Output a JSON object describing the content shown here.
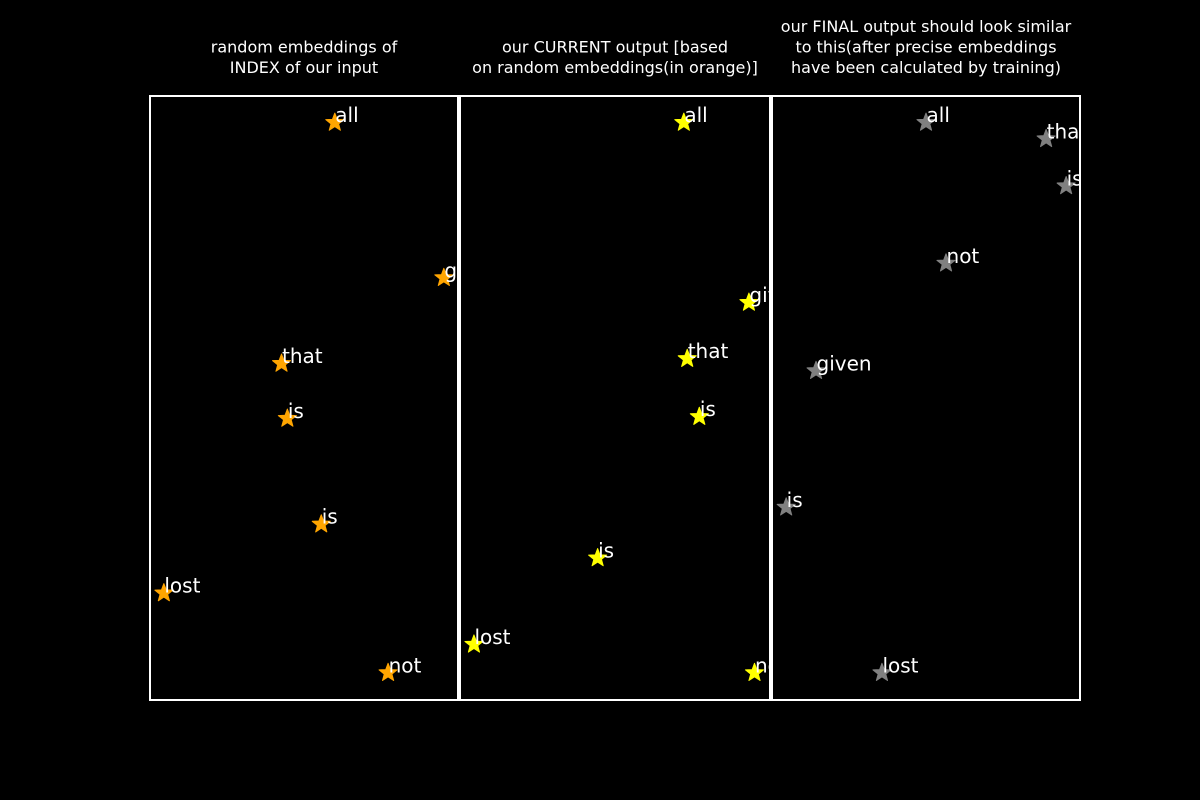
{
  "chart_data": [
    {
      "type": "scatter",
      "title_lines": [
        "random embeddings of",
        "INDEX of our input"
      ],
      "marker": "star",
      "marker_color": "#ffa500",
      "xlim": [
        0,
        1
      ],
      "ylim": [
        0,
        1
      ],
      "grid": false,
      "points": [
        {
          "label": "all",
          "x": 0.6,
          "y": 0.956
        },
        {
          "label": "gi",
          "x": 0.954,
          "y": 0.699
        },
        {
          "label": "that",
          "x": 0.427,
          "y": 0.557
        },
        {
          "label": "is",
          "x": 0.446,
          "y": 0.466
        },
        {
          "label": "is",
          "x": 0.556,
          "y": 0.291
        },
        {
          "label": "lost",
          "x": 0.045,
          "y": 0.177
        },
        {
          "label": "not",
          "x": 0.773,
          "y": 0.045
        }
      ]
    },
    {
      "type": "scatter",
      "title_lines": [
        "our CURRENT output [based",
        "on random embeddings(in orange)]"
      ],
      "marker": "star",
      "marker_color": "#ffff00",
      "xlim": [
        0,
        1
      ],
      "ylim": [
        0,
        1
      ],
      "grid": false,
      "points": [
        {
          "label": "all",
          "x": 0.722,
          "y": 0.956
        },
        {
          "label": "given",
          "x": 0.932,
          "y": 0.658
        },
        {
          "label": "that",
          "x": 0.733,
          "y": 0.565
        },
        {
          "label": "is",
          "x": 0.772,
          "y": 0.469
        },
        {
          "label": "is",
          "x": 0.444,
          "y": 0.235
        },
        {
          "label": "lost",
          "x": 0.045,
          "y": 0.092
        },
        {
          "label": "not",
          "x": 0.95,
          "y": 0.045
        }
      ]
    },
    {
      "type": "scatter",
      "title_lines": [
        "our FINAL output should look similar",
        "to this(after precise embeddings",
        "have been calculated by training)"
      ],
      "marker": "star",
      "marker_color": "#808080",
      "xlim": [
        0,
        1
      ],
      "ylim": [
        0,
        1
      ],
      "grid": false,
      "points": [
        {
          "label": "all",
          "x": 0.5,
          "y": 0.956
        },
        {
          "label": "that",
          "x": 0.89,
          "y": 0.929
        },
        {
          "label": "is",
          "x": 0.955,
          "y": 0.851
        },
        {
          "label": "not",
          "x": 0.565,
          "y": 0.723
        },
        {
          "label": "given",
          "x": 0.143,
          "y": 0.545
        },
        {
          "label": "is",
          "x": 0.046,
          "y": 0.319
        },
        {
          "label": "lost",
          "x": 0.357,
          "y": 0.045
        }
      ]
    }
  ]
}
